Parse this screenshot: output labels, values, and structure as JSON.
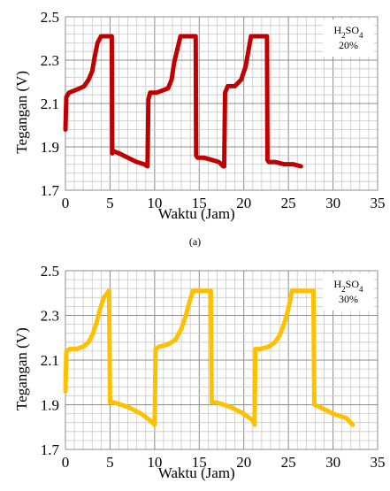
{
  "chart_data": [
    {
      "type": "line",
      "label": "(a)",
      "legend": [
        "H2SO4",
        "20%"
      ],
      "xlabel": "Waktu (Jam)",
      "ylabel": "Tegangan (V)",
      "xlim": [
        0,
        35
      ],
      "ylim": [
        1.7,
        2.5
      ],
      "xticks": [
        "0",
        "5",
        "10",
        "15",
        "20",
        "25",
        "30",
        "35"
      ],
      "yticks": [
        "1.7",
        "1.9",
        "2.1",
        "2.3",
        "2.5"
      ],
      "grid": true,
      "color": "#C00000",
      "series": [
        {
          "x": [
            0,
            0.1,
            0.4,
            1.0,
            1.6,
            2.1,
            2.6,
            3.0,
            3.3,
            3.6,
            4.0,
            5.2,
            5.25,
            5.4,
            6.0,
            7.0,
            8.0,
            8.8,
            9.2,
            9.3,
            9.5,
            10.2,
            11.5,
            11.9,
            12.2,
            12.6,
            12.9,
            14.6,
            14.65,
            14.8,
            15.5,
            16.4,
            17.2,
            17.7,
            17.8,
            17.9,
            18.2,
            19.0,
            19.7,
            20.2,
            20.5,
            20.8,
            22.6,
            22.65,
            22.8,
            23.5,
            24.5,
            25.5,
            26.4
          ],
          "y": [
            1.98,
            2.13,
            2.15,
            2.16,
            2.17,
            2.18,
            2.21,
            2.25,
            2.32,
            2.38,
            2.41,
            2.41,
            1.87,
            1.88,
            1.87,
            1.85,
            1.83,
            1.82,
            1.81,
            2.12,
            2.15,
            2.15,
            2.17,
            2.21,
            2.29,
            2.36,
            2.41,
            2.41,
            1.86,
            1.85,
            1.85,
            1.84,
            1.83,
            1.81,
            1.81,
            2.15,
            2.18,
            2.18,
            2.21,
            2.27,
            2.34,
            2.41,
            2.41,
            1.84,
            1.83,
            1.83,
            1.82,
            1.82,
            1.81
          ]
        }
      ]
    },
    {
      "type": "line",
      "legend": [
        "H2SO4",
        "30%"
      ],
      "xlabel": "Waktu (Jam)",
      "ylabel": "Tegangan (V)",
      "xlim": [
        0,
        35
      ],
      "ylim": [
        1.7,
        2.5
      ],
      "xticks": [
        "0",
        "5",
        "10",
        "15",
        "20",
        "25",
        "30",
        "35"
      ],
      "yticks": [
        "1.7",
        "1.9",
        "2.1",
        "2.3",
        "2.5"
      ],
      "grid": true,
      "color": "#FFC000",
      "series": [
        {
          "x": [
            0,
            0.1,
            0.5,
            1.2,
            2.0,
            2.6,
            3.1,
            3.5,
            3.9,
            4.3,
            4.9,
            5.0,
            5.5,
            7.0,
            8.5,
            9.5,
            10.0,
            10.1,
            10.5,
            11.5,
            12.3,
            13.0,
            13.5,
            13.9,
            14.3,
            16.3,
            16.4,
            17.0,
            18.5,
            20.0,
            21.0,
            21.2,
            21.3,
            21.8,
            22.8,
            23.5,
            24.0,
            24.5,
            25.0,
            25.4,
            27.8,
            27.9,
            28.5,
            30.0,
            31.5,
            32.2
          ],
          "y": [
            1.96,
            2.14,
            2.15,
            2.15,
            2.16,
            2.18,
            2.22,
            2.27,
            2.33,
            2.38,
            2.41,
            1.91,
            1.91,
            1.89,
            1.86,
            1.83,
            1.81,
            2.15,
            2.16,
            2.17,
            2.19,
            2.24,
            2.3,
            2.36,
            2.41,
            2.41,
            1.91,
            1.91,
            1.89,
            1.86,
            1.83,
            1.81,
            2.15,
            2.15,
            2.16,
            2.18,
            2.21,
            2.26,
            2.33,
            2.41,
            2.41,
            1.9,
            1.89,
            1.86,
            1.84,
            1.81
          ]
        }
      ]
    }
  ]
}
